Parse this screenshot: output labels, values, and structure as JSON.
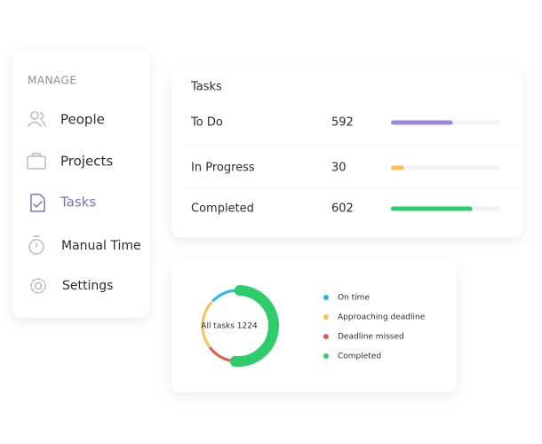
{
  "sidebar": {
    "heading": "MANAGE",
    "items": [
      "People",
      "Projects",
      "Tasks",
      "Manual Time",
      "Settings"
    ]
  },
  "tasks": {
    "title": "Tasks",
    "rows": [
      {
        "name": "To Do",
        "count": 592,
        "progress": 0.57,
        "color": "#9b87e0"
      },
      {
        "name": "In Progress",
        "count": 30,
        "progress": 0.12,
        "color": "#f7c05a"
      },
      {
        "name": "Completed",
        "count": 602,
        "progress": 0.75,
        "color": "#2fcc6b"
      }
    ]
  },
  "status": {
    "center_label": "All tasks 1224",
    "series": [
      {
        "name": "On time",
        "color": "#22b8e8",
        "value": 13
      },
      {
        "name": "Approaching deadline",
        "color": "#f7c05a",
        "value": 22
      },
      {
        "name": "Deadline missed",
        "color": "#e85a4f",
        "value": 13
      },
      {
        "name": "Completed",
        "color": "#2fcc6b",
        "value": 52
      }
    ]
  }
}
